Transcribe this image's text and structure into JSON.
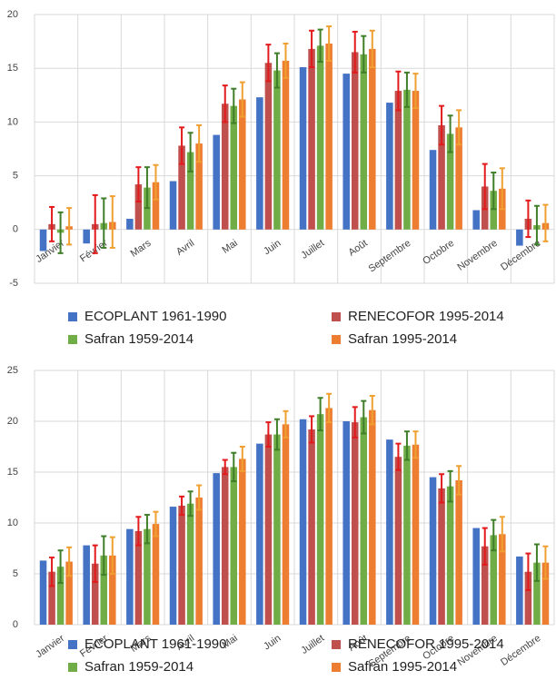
{
  "chart_data": [
    {
      "type": "bar",
      "categories": [
        "Janvier",
        "Février",
        "Mars",
        "Avril",
        "Mai",
        "Juin",
        "Juillet",
        "Août",
        "Septembre",
        "Octobre",
        "Novembre",
        "Décembre"
      ],
      "series": [
        {
          "name": "ECOPLANT 1961-1990",
          "color": "#4472c4",
          "values": [
            -2.0,
            -1.3,
            1.0,
            4.5,
            8.8,
            12.3,
            15.1,
            14.5,
            11.8,
            7.4,
            1.8,
            -1.5
          ]
        },
        {
          "name": "RENECOFOR 1995-2014",
          "color": "#c0504d",
          "error_color": "#e31a1c",
          "values": [
            0.5,
            0.5,
            4.2,
            7.8,
            11.7,
            15.5,
            16.8,
            16.5,
            12.9,
            9.7,
            4.0,
            1.0
          ],
          "errors": [
            1.6,
            2.7,
            1.6,
            1.7,
            1.7,
            1.7,
            1.7,
            1.9,
            1.8,
            1.8,
            2.1,
            1.7
          ]
        },
        {
          "name": "Safran 1959-2014",
          "color": "#70ad47",
          "error_color": "#3f7f2a",
          "values": [
            -0.3,
            0.6,
            3.9,
            7.2,
            11.5,
            14.8,
            17.1,
            16.3,
            13.0,
            8.9,
            3.6,
            0.4
          ],
          "errors": [
            1.9,
            2.3,
            1.9,
            1.8,
            1.6,
            1.6,
            1.5,
            1.7,
            1.6,
            1.7,
            1.7,
            1.8
          ]
        },
        {
          "name": "Safran 1995-2014",
          "color": "#ed7d31",
          "error_color": "#f0a030",
          "values": [
            0.3,
            0.7,
            4.4,
            8.0,
            12.1,
            15.7,
            17.3,
            16.8,
            12.9,
            9.5,
            3.8,
            0.6
          ],
          "errors": [
            1.7,
            2.4,
            1.6,
            1.7,
            1.6,
            1.6,
            1.6,
            1.7,
            1.6,
            1.6,
            1.9,
            1.7
          ]
        }
      ],
      "ylim": [
        -5,
        20
      ],
      "yticks": [
        -5,
        0,
        5,
        10,
        15,
        20
      ],
      "grid": true
    },
    {
      "type": "bar",
      "categories": [
        "Janvier",
        "Février",
        "Mars",
        "Avril",
        "Mai",
        "Juin",
        "Juillet",
        "Août",
        "Septembre",
        "Octobre",
        "Novembre",
        "Décembre"
      ],
      "series": [
        {
          "name": "ECOPLANT 1961-1990",
          "color": "#4472c4",
          "values": [
            6.3,
            7.8,
            9.4,
            11.6,
            14.9,
            17.8,
            20.2,
            20.0,
            18.2,
            14.5,
            9.5,
            6.7
          ]
        },
        {
          "name": "RENECOFOR 1995-2014",
          "color": "#c0504d",
          "error_color": "#e31a1c",
          "values": [
            5.2,
            6.0,
            9.2,
            11.7,
            15.5,
            18.7,
            19.2,
            19.9,
            16.5,
            13.4,
            7.7,
            5.2
          ],
          "errors": [
            1.4,
            1.8,
            1.4,
            0.9,
            0.7,
            1.2,
            1.3,
            1.5,
            1.3,
            1.4,
            1.8,
            1.8
          ]
        },
        {
          "name": "Safran 1959-2014",
          "color": "#70ad47",
          "error_color": "#3f7f2a",
          "values": [
            5.7,
            6.8,
            9.4,
            11.9,
            15.5,
            18.7,
            20.7,
            20.4,
            17.6,
            13.6,
            8.8,
            6.1
          ],
          "errors": [
            1.6,
            1.9,
            1.4,
            1.2,
            1.4,
            1.5,
            1.6,
            1.6,
            1.4,
            1.5,
            1.5,
            1.8
          ]
        },
        {
          "name": "Safran 1995-2014",
          "color": "#ed7d31",
          "error_color": "#f0a030",
          "values": [
            6.2,
            6.8,
            9.9,
            12.5,
            16.3,
            19.7,
            21.3,
            21.1,
            17.7,
            14.2,
            8.9,
            6.1
          ],
          "errors": [
            1.4,
            1.8,
            1.2,
            1.2,
            1.2,
            1.3,
            1.4,
            1.4,
            1.3,
            1.4,
            1.7,
            1.6
          ]
        }
      ],
      "ylim": [
        0,
        25
      ],
      "yticks": [
        0,
        5,
        10,
        15,
        20,
        25
      ],
      "grid": true
    }
  ]
}
